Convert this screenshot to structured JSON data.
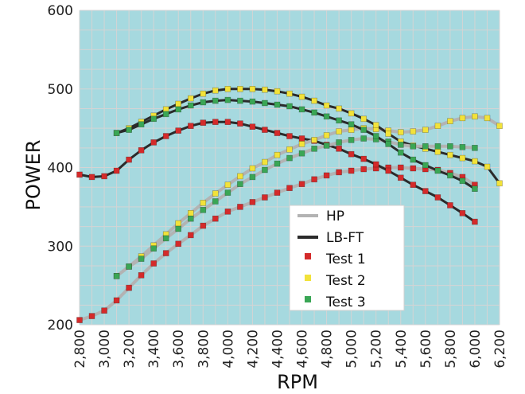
{
  "chart_data": {
    "type": "line",
    "title": "",
    "xlabel": "RPM",
    "ylabel": "POWER",
    "xlim": [
      2800,
      6200
    ],
    "ylim": [
      200,
      600
    ],
    "x_ticks": [
      2800,
      3000,
      3200,
      3400,
      3600,
      3800,
      4000,
      4200,
      4400,
      4600,
      4800,
      5000,
      5200,
      5400,
      5600,
      5800,
      6000,
      6200
    ],
    "x_tick_labels": [
      "2,800",
      "3,000",
      "3,200",
      "3,400",
      "3,600",
      "3,800",
      "4,000",
      "4,200",
      "4,400",
      "4,600",
      "4,800",
      "5,000",
      "5,200",
      "5,400",
      "5,600",
      "5,800",
      "6,000",
      "6,200"
    ],
    "y_ticks": [
      200,
      300,
      400,
      500,
      600
    ],
    "y_tick_labels": [
      "200",
      "300",
      "400",
      "500",
      "600"
    ],
    "grid": true,
    "legend_position": "bottom-right",
    "legend": [
      {
        "label": "HP",
        "kind": "line",
        "color": "#b3b3b3"
      },
      {
        "label": "LB-FT",
        "kind": "line",
        "color": "#2b2b2b"
      },
      {
        "label": "Test 1",
        "kind": "marker",
        "color": "#d42a2a"
      },
      {
        "label": "Test 2",
        "kind": "marker",
        "color": "#f2e23a"
      },
      {
        "label": "Test 3",
        "kind": "marker",
        "color": "#3aa655"
      }
    ],
    "colors": {
      "plot_background": "#a6d9df",
      "grid": "#d4d4d4",
      "hp_line": "#b3b3b3",
      "tq_line": "#2b2b2b",
      "test1": "#d42a2a",
      "test2": "#f2e23a",
      "test3": "#3aa655"
    },
    "series": [
      {
        "name": "Test 1",
        "kind": "HP",
        "x": [
          2800,
          2900,
          3000,
          3100,
          3200,
          3300,
          3400,
          3500,
          3600,
          3700,
          3800,
          3900,
          4000,
          4100,
          4200,
          4300,
          4400,
          4500,
          4600,
          4700,
          4800,
          4900,
          5000,
          5100,
          5200,
          5300,
          5400,
          5500,
          5600,
          5700,
          5800,
          5900,
          6000
        ],
        "y": [
          206,
          211,
          218,
          231,
          247,
          263,
          278,
          291,
          303,
          314,
          326,
          335,
          344,
          350,
          356,
          362,
          368,
          374,
          379,
          385,
          390,
          394,
          396,
          398,
          399,
          400,
          400,
          399,
          398,
          397,
          393,
          388,
          378
        ]
      },
      {
        "name": "Test 1",
        "kind": "LB-FT",
        "x": [
          2800,
          2900,
          3000,
          3100,
          3200,
          3300,
          3400,
          3500,
          3600,
          3700,
          3800,
          3900,
          4000,
          4100,
          4200,
          4300,
          4400,
          4500,
          4600,
          4700,
          4800,
          4900,
          5000,
          5100,
          5200,
          5300,
          5400,
          5500,
          5600,
          5700,
          5800,
          5900,
          6000
        ],
        "y": [
          391,
          388,
          389,
          396,
          410,
          422,
          432,
          440,
          447,
          453,
          457,
          458,
          458,
          456,
          452,
          448,
          444,
          440,
          437,
          434,
          429,
          424,
          417,
          411,
          404,
          396,
          387,
          378,
          370,
          362,
          352,
          342,
          331
        ]
      },
      {
        "name": "Test 2",
        "kind": "HP",
        "x": [
          3100,
          3200,
          3300,
          3400,
          3500,
          3600,
          3700,
          3800,
          3900,
          4000,
          4100,
          4200,
          4300,
          4400,
          4500,
          4600,
          4700,
          4800,
          4900,
          5000,
          5100,
          5200,
          5300,
          5400,
          5500,
          5600,
          5700,
          5800,
          5900,
          6000,
          6100,
          6200
        ],
        "y": [
          262,
          274,
          287,
          301,
          315,
          329,
          342,
          355,
          367,
          378,
          389,
          399,
          407,
          416,
          423,
          430,
          435,
          441,
          446,
          448,
          450,
          449,
          447,
          445,
          446,
          448,
          453,
          459,
          463,
          465,
          463,
          453
        ]
      },
      {
        "name": "Test 2",
        "kind": "LB-FT",
        "x": [
          3100,
          3200,
          3300,
          3400,
          3500,
          3600,
          3700,
          3800,
          3900,
          4000,
          4100,
          4200,
          4300,
          4400,
          4500,
          4600,
          4700,
          4800,
          4900,
          5000,
          5100,
          5200,
          5300,
          5400,
          5500,
          5600,
          5700,
          5800,
          5900,
          6000,
          6100,
          6200
        ],
        "y": [
          444,
          450,
          458,
          466,
          474,
          481,
          488,
          494,
          498,
          500,
          500,
          500,
          499,
          497,
          494,
          490,
          485,
          479,
          475,
          469,
          462,
          454,
          443,
          433,
          428,
          424,
          420,
          416,
          412,
          408,
          401,
          380
        ]
      },
      {
        "name": "Test 3",
        "kind": "HP",
        "x": [
          3100,
          3200,
          3300,
          3400,
          3500,
          3600,
          3700,
          3800,
          3900,
          4000,
          4100,
          4200,
          4300,
          4400,
          4500,
          4600,
          4700,
          4800,
          4900,
          5000,
          5100,
          5200,
          5300,
          5400,
          5500,
          5600,
          5700,
          5800,
          5900,
          6000
        ],
        "y": [
          262,
          274,
          284,
          297,
          310,
          322,
          335,
          346,
          357,
          368,
          379,
          388,
          397,
          405,
          412,
          418,
          424,
          428,
          432,
          435,
          437,
          436,
          433,
          429,
          427,
          427,
          427,
          427,
          426,
          425
        ]
      },
      {
        "name": "Test 3",
        "kind": "LB-FT",
        "x": [
          3100,
          3200,
          3300,
          3400,
          3500,
          3600,
          3700,
          3800,
          3900,
          4000,
          4100,
          4200,
          4300,
          4400,
          4500,
          4600,
          4700,
          4800,
          4900,
          5000,
          5100,
          5200,
          5300,
          5400,
          5500,
          5600,
          5700,
          5800,
          5900,
          6000
        ],
        "y": [
          444,
          448,
          455,
          462,
          468,
          474,
          479,
          483,
          485,
          486,
          485,
          484,
          482,
          480,
          478,
          474,
          470,
          465,
          460,
          455,
          448,
          440,
          430,
          419,
          410,
          403,
          396,
          390,
          383,
          373
        ]
      }
    ]
  }
}
